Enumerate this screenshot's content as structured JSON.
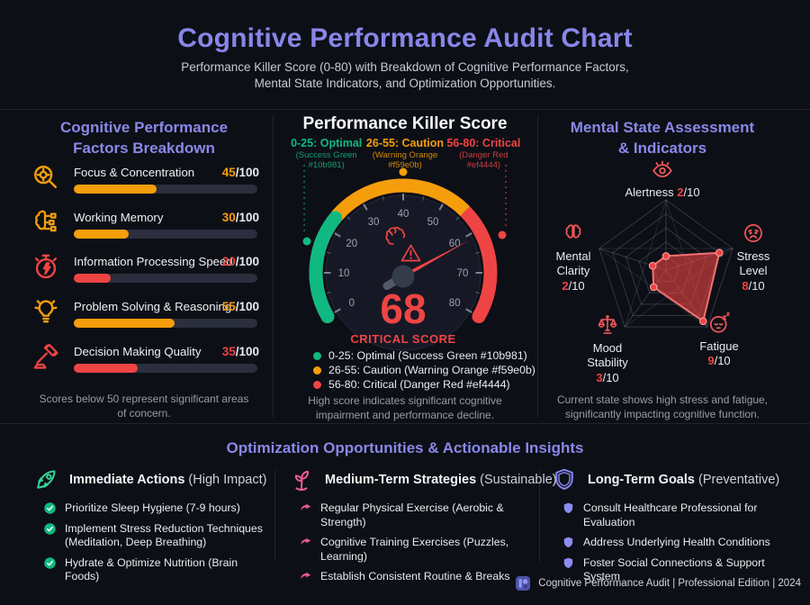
{
  "header": {
    "title": "Cognitive Performance Audit Chart",
    "subtitle_line1": "Performance Killer Score (0-80) with Breakdown of Cognitive Performance Factors,",
    "subtitle_line2": "Mental State Indicators, and Optimization Opportunities."
  },
  "factors_panel": {
    "title_line1": "Cognitive Performance",
    "title_line2": "Factors Breakdown",
    "suffix": "/100",
    "icons": [
      "magnifier-icon",
      "brain-circuit-icon",
      "stopwatch-icon",
      "lightbulb-icon",
      "gavel-icon"
    ],
    "note_line1": "Scores below 50 represent significant areas",
    "note_line2": "of concern."
  },
  "gauge_panel": {
    "title": "Performance Killer Score",
    "status_label": "CRITICAL SCORE",
    "note_line1": "High score indicates significant cognitive",
    "note_line2": "impairment and performance decline."
  },
  "mental_panel": {
    "title_line1": "Mental State Assessment",
    "title_line2": "& Indicators",
    "suffix": "/10",
    "icons": [
      "eye-icon",
      "stressed-face-icon",
      "sleepy-face-icon",
      "scale-icon",
      "brain-icon"
    ],
    "note_line1": "Current state shows high stress and fatigue,",
    "note_line2": "significantly impacting cognitive function."
  },
  "optimization": {
    "title": "Optimization Opportunities & Actionable Insights",
    "columns": [
      {
        "icon": "rocket-icon",
        "accent": "#34d399",
        "bullet": "check-circle-icon",
        "bullet_color": "#10b981",
        "title": "Immediate Actions",
        "subtitle": " (High Impact)",
        "items": [
          "Prioritize Sleep Hygiene (7-9 hours)",
          "Implement Stress Reduction Techniques (Meditation, Deep Breathing)",
          "Hydrate & Optimize Nutrition (Brain Foods)"
        ]
      },
      {
        "icon": "sprout-icon",
        "accent": "#ee5a96",
        "bullet": "arrow-bullet-icon",
        "bullet_color": "#ee5a96",
        "title": "Medium-Term Strategies",
        "subtitle": " (Sustainable)",
        "items": [
          "Regular Physical Exercise (Aerobic & Strength)",
          "Cognitive Training Exercises (Puzzles, Learning)",
          "Establish Consistent Routine & Breaks"
        ]
      },
      {
        "icon": "shield-icon",
        "accent": "#8688ee",
        "bullet": "shield-bullet-icon",
        "bullet_color": "#8b8cf0",
        "title": "Long-Term Goals",
        "subtitle": " (Preventative)",
        "items": [
          "Consult Healthcare Professional for Evaluation",
          "Address Underlying Health Conditions",
          "Foster Social Connections & Support System"
        ]
      }
    ]
  },
  "footer": {
    "text": "Cognitive Performance Audit | Professional Edition | 2024"
  },
  "chart_data": [
    {
      "type": "bar",
      "title": "Cognitive Performance Factors Breakdown",
      "categories": [
        "Focus & Concentration",
        "Working Memory",
        "Information Processing Speed",
        "Problem Solving & Reasoning",
        "Decision Making Quality"
      ],
      "values": [
        45,
        30,
        20,
        55,
        35
      ],
      "max": 100,
      "bar_colors": [
        "#f59e0b",
        "#f59e0b",
        "#ef4444",
        "#f59e0b",
        "#ef4444"
      ],
      "note": "Scores below 50 represent significant areas of concern."
    },
    {
      "type": "gauge",
      "title": "Performance Killer Score",
      "value": 68,
      "min": 0,
      "max": 80,
      "status_label": "CRITICAL SCORE",
      "tick_interval": 10,
      "ranges": [
        {
          "from": 0,
          "to": 25,
          "label": "Optimal",
          "color_name": "Success Green",
          "color": "#10b981"
        },
        {
          "from": 26,
          "to": 55,
          "label": "Caution",
          "color_name": "Warning Orange",
          "color": "#f59e0b"
        },
        {
          "from": 56,
          "to": 80,
          "label": "Critical",
          "color_name": "Danger Red",
          "color": "#ef4444"
        }
      ],
      "note": "High score indicates significant cognitive impairment and performance decline."
    },
    {
      "type": "radar",
      "title": "Mental State Assessment & Indicators",
      "axes": [
        "Alertness",
        "Stress Level",
        "Fatigue",
        "Mood Stability",
        "Mental Clarity"
      ],
      "values": [
        2,
        8,
        9,
        3,
        2
      ],
      "max": 10,
      "levels": 5,
      "fill_color": "#ef4444",
      "note": "Current state shows high stress and fatigue, significantly impacting cognitive function."
    }
  ]
}
